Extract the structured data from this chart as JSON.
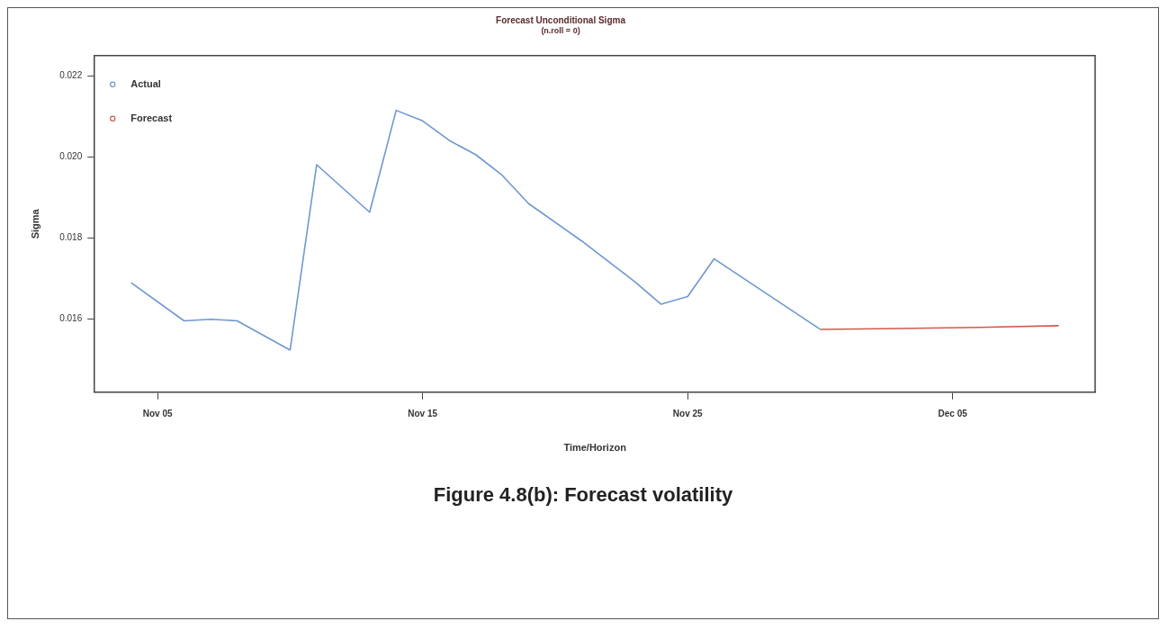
{
  "chart_data": {
    "type": "line",
    "title": "Forecast Unconditional Sigma",
    "subtitle": "(n.roll = 0)",
    "xlabel": "Time/Horizon",
    "ylabel": "Sigma",
    "annotations": [
      "Figure 4.8(b): Forecast volatility"
    ],
    "xlim": [
      "--11-02T15:00",
      "--12-10T09:00"
    ],
    "xticks": [
      {
        "value": "--11-05",
        "label": "Nov 05"
      },
      {
        "value": "--11-15",
        "label": "Nov 15"
      },
      {
        "value": "--11-25",
        "label": "Nov 25"
      },
      {
        "value": "--12-05",
        "label": "Dec 05"
      }
    ],
    "ylim": [
      0.0142,
      0.0225
    ],
    "yticks": [
      {
        "value": 0.016,
        "label": "0.016"
      },
      {
        "value": 0.018,
        "label": "0.018"
      },
      {
        "value": 0.02,
        "label": "0.020"
      },
      {
        "value": 0.022,
        "label": "0.022"
      }
    ],
    "grid": false,
    "legend": "top left",
    "marker": "none",
    "line_style": "solid",
    "series": [
      {
        "name": "Actual",
        "color": "#6f97d0",
        "x": [
          "--11-04",
          "--11-06",
          "--11-07",
          "--11-08",
          "--11-10",
          "--11-11",
          "--11-13",
          "--11-14",
          "--11-15",
          "--11-16",
          "--11-17",
          "--11-18",
          "--11-19",
          "--11-21",
          "--11-23",
          "--11-24",
          "--11-25",
          "--11-26",
          "--11-30"
        ],
        "values": [
          0.0169,
          0.01596,
          0.016,
          0.01596,
          0.01524,
          0.01981,
          0.01864,
          0.02115,
          0.02089,
          0.02041,
          0.02006,
          0.01955,
          0.01885,
          0.01793,
          0.01693,
          0.01637,
          0.01656,
          0.01749,
          0.01575
        ]
      },
      {
        "name": "Forecast",
        "color": "#d05a4a",
        "x": [
          "--11-30",
          "--12-03",
          "--12-06",
          "--12-09"
        ],
        "values": [
          0.01575,
          0.01577,
          0.0158,
          0.01584
        ]
      }
    ]
  }
}
